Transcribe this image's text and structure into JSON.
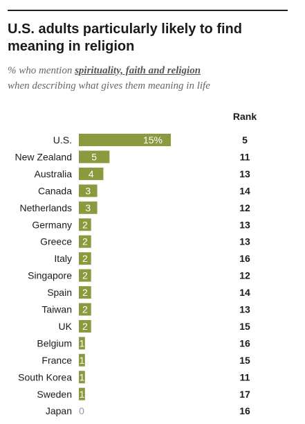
{
  "header": {
    "title": "U.S. adults particularly likely to find meaning in religion",
    "subtitle_prefix": "% who mention ",
    "subtitle_emphasis": "spirituality, faith and religion",
    "subtitle_suffix": "when describing what gives them meaning in life"
  },
  "rank_header": "Rank",
  "colors": {
    "bar": "#8c9a3f",
    "bar_label_inside": "#ffffff",
    "zero_label": "#999999",
    "text": "#1a1a1a",
    "rule": "#231f20"
  },
  "chart_data": {
    "type": "bar",
    "orientation": "horizontal",
    "title": "U.S. adults particularly likely to find meaning in religion",
    "categories": [
      "U.S.",
      "New Zealand",
      "Australia",
      "Canada",
      "Netherlands",
      "Germany",
      "Greece",
      "Italy",
      "Singapore",
      "Spain",
      "Taiwan",
      "UK",
      "Belgium",
      "France",
      "South Korea",
      "Sweden",
      "Japan"
    ],
    "values": [
      15,
      5,
      4,
      3,
      3,
      2,
      2,
      2,
      2,
      2,
      2,
      2,
      1,
      1,
      1,
      1,
      0
    ],
    "value_labels": [
      "15%",
      "5",
      "4",
      "3",
      "3",
      "2",
      "2",
      "2",
      "2",
      "2",
      "2",
      "2",
      "1",
      "1",
      "1",
      "1",
      "0"
    ],
    "rank": [
      5,
      11,
      13,
      14,
      12,
      13,
      13,
      16,
      12,
      14,
      13,
      15,
      16,
      15,
      11,
      17,
      16
    ],
    "xlim": [
      0,
      15
    ],
    "grid": false,
    "legend": "none"
  }
}
